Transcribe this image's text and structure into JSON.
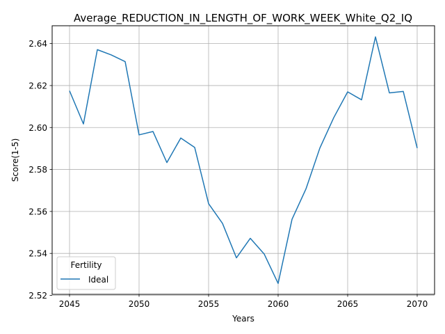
{
  "chart_data": {
    "type": "line",
    "title": "Average_REDUCTION_IN_LENGTH_OF_WORK_WEEK_White_Q2_IQ",
    "xlabel": "Years",
    "ylabel": "Score(1-5)",
    "xlim": [
      2043.75,
      2071.25
    ],
    "ylim": [
      2.5205,
      2.6485
    ],
    "xticks": [
      2045,
      2050,
      2055,
      2060,
      2065,
      2070
    ],
    "xtick_labels": [
      "2045",
      "2050",
      "2055",
      "2060",
      "2065",
      "2070"
    ],
    "yticks": [
      2.52,
      2.54,
      2.56,
      2.58,
      2.6,
      2.62,
      2.64
    ],
    "ytick_labels": [
      "2.52",
      "2.54",
      "2.56",
      "2.58",
      "2.60",
      "2.62",
      "2.64"
    ],
    "grid": true,
    "legend": {
      "title": "Fertility",
      "placement": "lower-left"
    },
    "series": [
      {
        "name": "Ideal",
        "color": "#1f77b4",
        "x": [
          2045,
          2046,
          2047,
          2048,
          2049,
          2050,
          2051,
          2052,
          2053,
          2054,
          2055,
          2056,
          2057,
          2058,
          2059,
          2060,
          2061,
          2062,
          2063,
          2064,
          2065,
          2066,
          2067,
          2068,
          2069,
          2070
        ],
        "y": [
          2.6175,
          2.6017,
          2.6371,
          2.6346,
          2.6314,
          2.5965,
          2.5981,
          2.5833,
          2.595,
          2.5905,
          2.5637,
          2.5543,
          2.5379,
          2.5472,
          2.5397,
          2.5257,
          2.5563,
          2.5707,
          2.5902,
          2.6047,
          2.617,
          2.6132,
          2.6432,
          2.6165,
          2.6172,
          2.5902
        ]
      }
    ]
  }
}
